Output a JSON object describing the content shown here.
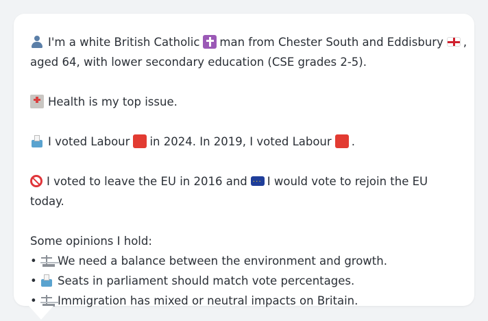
{
  "profile": {
    "line1_text": "I'm a white British Catholic",
    "line1_text_b": "man from Chester South and Eddisbury",
    "line1_trail": ",",
    "line2_text": "aged 64, with lower secondary education (CSE grades 2-5).",
    "health_text": "Health is my top issue.",
    "vote_text_a": "I voted Labour",
    "vote_text_b": "in 2024. In 2019, I voted Labour",
    "vote_text_c": ".",
    "eu_text_a": "I voted to leave the EU in 2016 and",
    "eu_text_b": "I would vote to rejoin the EU today.",
    "opinions_heading": "Some opinions I hold:",
    "opinions": [
      {
        "bullet": "•",
        "icon": "scales-icon",
        "text": "We need a balance between the environment and growth."
      },
      {
        "bullet": "•",
        "icon": "ballot-box-icon",
        "text": "Seats in parliament should match vote percentages."
      },
      {
        "bullet": "•",
        "icon": "scales-icon",
        "text": "Immigration has mixed or neutral impacts on Britain."
      }
    ]
  },
  "colors": {
    "text": "#2a2f36",
    "card_background": "#ffffff",
    "page_background": "#f1f3f5",
    "labour_red": "#e23b32"
  }
}
